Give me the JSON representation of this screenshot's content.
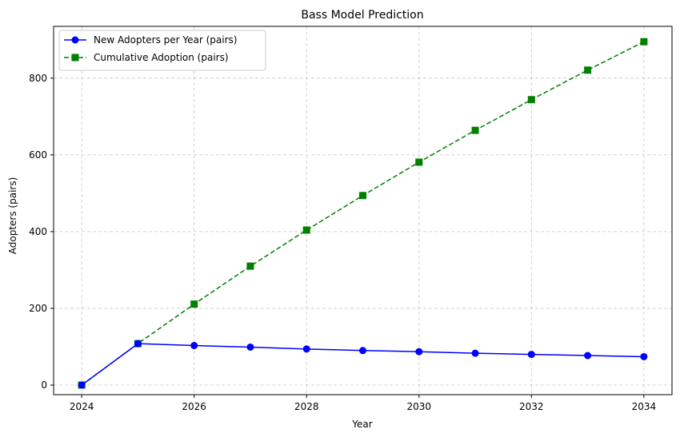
{
  "chart_data": {
    "type": "line",
    "title": "Bass Model Prediction",
    "xlabel": "Year",
    "ylabel": "Adopters (pairs)",
    "x": [
      2024,
      2025,
      2026,
      2027,
      2028,
      2029,
      2030,
      2031,
      2032,
      2033,
      2034
    ],
    "xlim": [
      2023.5,
      2034.5
    ],
    "ylim": [
      -25,
      935
    ],
    "xticks": [
      2024,
      2026,
      2028,
      2030,
      2032,
      2034
    ],
    "yticks": [
      0,
      200,
      400,
      600,
      800
    ],
    "grid": true,
    "legend_position": "top-left",
    "series": [
      {
        "name": "New Adopters per Year (pairs)",
        "color": "#0000ff",
        "marker": "circle",
        "linestyle": "solid",
        "values": [
          0,
          108,
          103,
          99,
          94,
          90,
          87,
          83,
          80,
          77,
          74
        ]
      },
      {
        "name": "Cumulative Adoption (pairs)",
        "color": "#008000",
        "marker": "square",
        "linestyle": "dashed",
        "values": [
          0,
          108,
          211,
          310,
          404,
          494,
          581,
          664,
          744,
          821,
          895
        ]
      }
    ]
  }
}
